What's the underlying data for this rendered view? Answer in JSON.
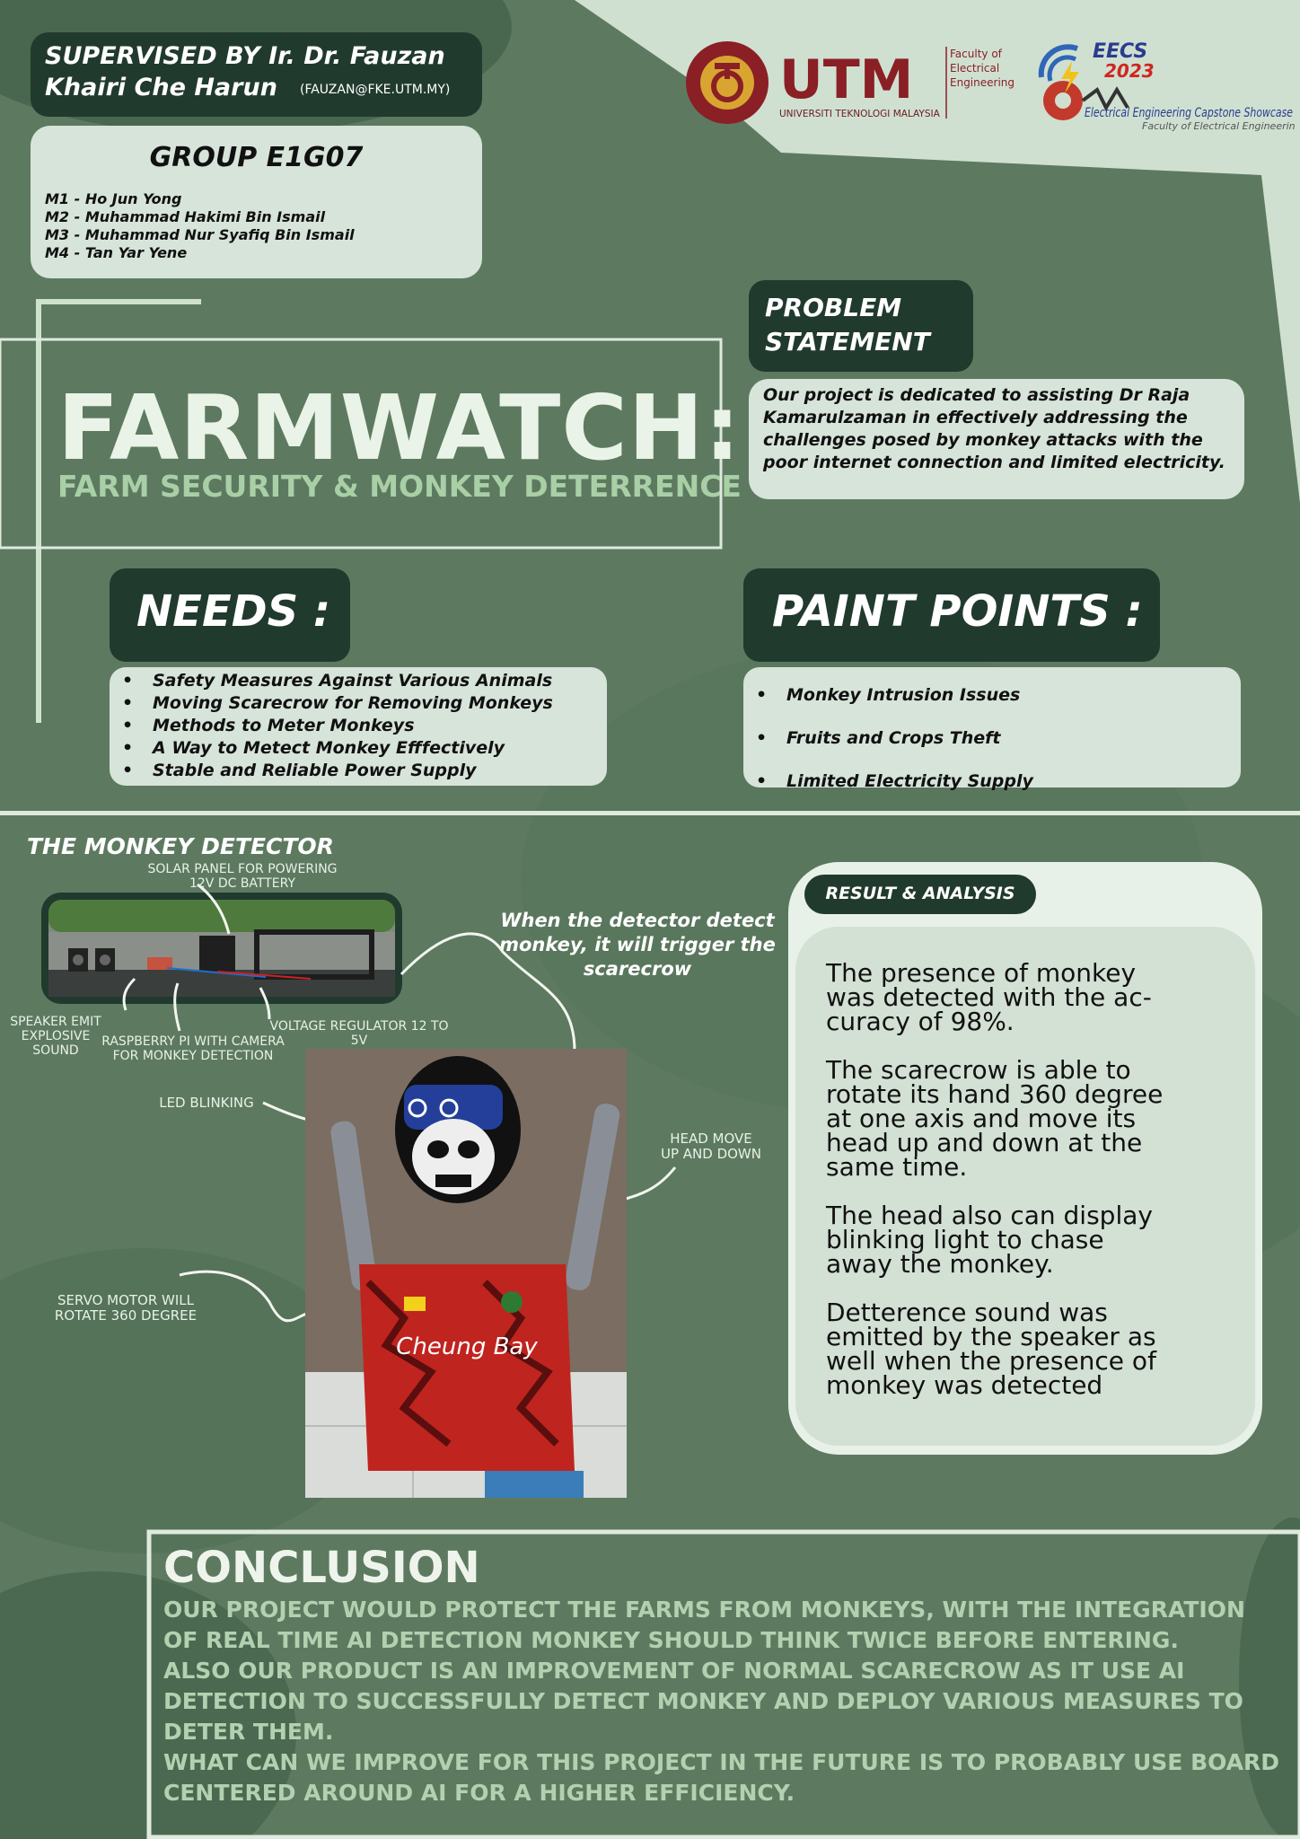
{
  "colors": {
    "background": "#5d7a60",
    "dark_green": "#213a2e",
    "light_green": "#d7e4da",
    "pale_green": "#a9cfa6",
    "logo_maroon": "#8a1f26",
    "logo_gold": "#d8a531"
  },
  "supervisor": {
    "line1": "SUPERVISED BY Ir. Dr. Fauzan",
    "line2": "Khairi Che Harun",
    "email": "(FAUZAN@FKE.UTM.MY)"
  },
  "group": {
    "title": "GROUP E1G07",
    "members": [
      "M1 - Ho Jun Yong",
      "M2 - Muhammad Hakimi Bin Ismail",
      "M3 - Muhammad Nur Syafiq Bin Ismail",
      "M4 - Tan Yar Yene"
    ]
  },
  "logos": {
    "utm_seal_text": "KERANA TUHAN UNTUK MANUSIA · UNIVERSITI TEKNOLOGI MALAYSIA",
    "utm_wordmark": "UTM",
    "utm_fullname": "UNIVERSITI TEKNOLOGI MALAYSIA",
    "faculty": [
      "Faculty of",
      "Electrical",
      "Engineering"
    ],
    "eecs_title": "EECS",
    "eecs_year": "2023",
    "eecs_subtitle": "Electrical Engineering Capstone Showcase",
    "eecs_faculty": "Faculty of Electrical Engineering"
  },
  "title": {
    "main": "FARMWATCH:",
    "sub": "FARM SECURITY & MONKEY DETERRENCE"
  },
  "problem": {
    "heading_line1": "PROBLEM",
    "heading_line2": "STATEMENT",
    "text": "Our project is dedicated to assisting Dr Raja Kamarulzaman in effectively addressing the challenges  posed by monkey attacks with the poor internet connection and limited electricity."
  },
  "needs": {
    "heading": "NEEDS :",
    "items": [
      "Safety Measures Against Various Animals",
      "Moving Scarecrow for Removing Monkeys",
      "Methods to Meter Monkeys",
      "A Way to Metect Monkey Efffectively",
      "Stable and Reliable Power Supply"
    ]
  },
  "pain_points": {
    "heading": "PAINT POINTS :",
    "items": [
      "Monkey Intrusion Issues",
      "Fruits and Crops Theft",
      "Limited Electricity Supply"
    ]
  },
  "detector": {
    "heading": "THE MONKEY DETECTOR",
    "labels": {
      "solar_1": "SOLAR PANEL FOR POWERING",
      "solar_2": "12V DC BATTERY",
      "speaker_1": "SPEAKER EMIT",
      "speaker_2": "EXPLOSIVE SOUND",
      "raspberry_1": "RASPBERRY PI WITH CAMERA",
      "raspberry_2": "FOR MONKEY DETECTION",
      "voltage": "VOLTAGE REGULATOR 12 TO 5V",
      "led": "LED BLINKING",
      "head_1": "HEAD MOVE",
      "head_2": "UP AND DOWN",
      "servo_1": "SERVO MOTOR WILL",
      "servo_2": "ROTATE 360 DEGREE"
    },
    "trigger_1": "When the detector detect",
    "trigger_2": "monkey, it will trigger the",
    "trigger_3": "scarecrow",
    "shirt_text": "Cheung Bay"
  },
  "results": {
    "heading": "RESULT & ANALYSIS",
    "paragraphs": [
      [
        "The presence of monkey",
        "was detected with the ac-",
        "curacy of 98%."
      ],
      [
        "The scarecrow is able to",
        "rotate its hand 360 degree",
        "at one axis and move its",
        "head up and down at the",
        "same time."
      ],
      [
        "The head also can display",
        "blinking light to chase",
        "away the monkey."
      ],
      [
        "Detterence sound was",
        "emitted by the  speaker as",
        "well when the presence of",
        "monkey was detected"
      ]
    ]
  },
  "conclusion": {
    "heading": "CONCLUSION",
    "lines": [
      "OUR PROJECT WOULD PROTECT THE FARMS FROM MONKEYS, WITH THE INTEGRATION",
      "OF REAL TIME AI DETECTION  MONKEY SHOULD THINK TWICE BEFORE ENTERING.",
      "ALSO OUR PRODUCT IS AN IMPROVEMENT OF NORMAL SCARECROW AS IT USE AI",
      "DETECTION TO SUCCESSFULLY DETECT MONKEY AND DEPLOY VARIOUS MEASURES TO",
      "DETER THEM.",
      "WHAT CAN WE IMPROVE FOR THIS PROJECT IN THE FUTURE IS TO PROBABLY USE BOARD",
      "CENTERED AROUND AI  FOR A HIGHER EFFICIENCY."
    ]
  }
}
